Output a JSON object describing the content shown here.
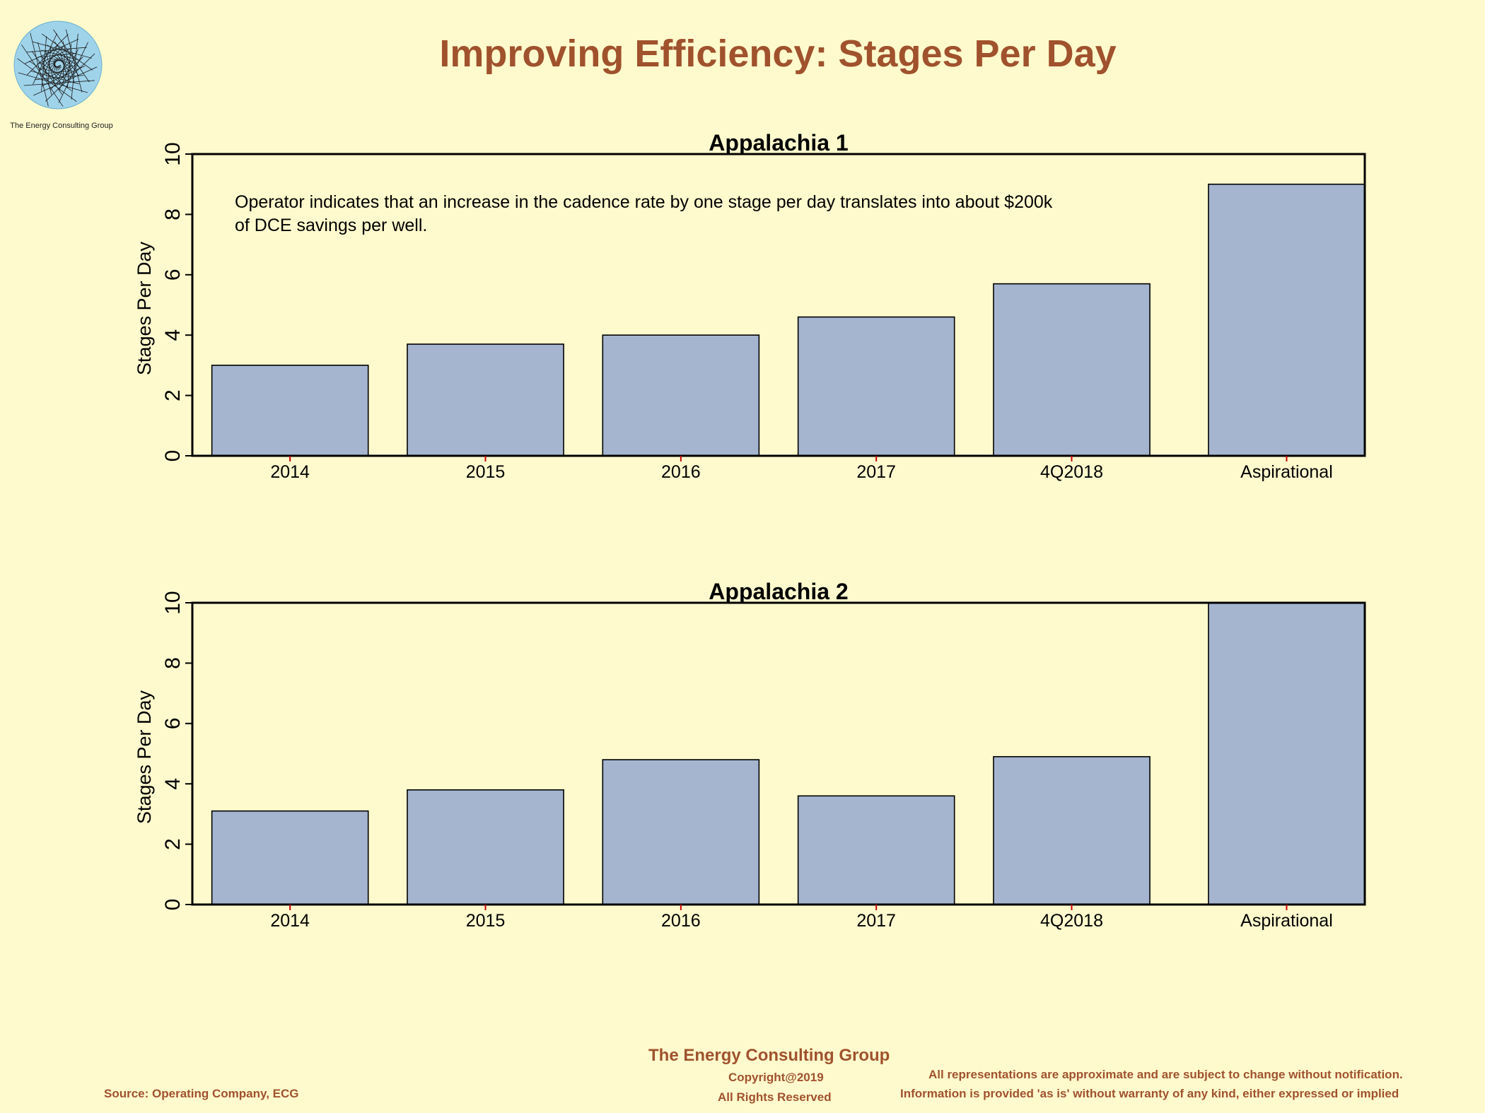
{
  "header": {
    "title": "Improving Efficiency:  Stages Per Day",
    "logo_text": "The Energy Consulting Group",
    "logo_icon": "spiral-logo-icon"
  },
  "colors": {
    "background": "#fffacd",
    "bar_fill": "#a5b5d0",
    "title": "#a0522d",
    "baseline": "#cc0000"
  },
  "chart_data": [
    {
      "type": "bar",
      "title": "Appalachia 1",
      "ylabel": "Stages Per Day",
      "xlabel": "",
      "ylim": [
        0,
        10
      ],
      "yticks": [
        0,
        2,
        4,
        6,
        8,
        10
      ],
      "categories": [
        "2014",
        "2015",
        "2016",
        "2017",
        "4Q2018",
        "Aspirational"
      ],
      "values": [
        3.0,
        3.7,
        4.0,
        4.6,
        5.7,
        9.0
      ],
      "annotation": [
        "Operator indicates that an increase in the cadence rate by one stage per day translates into about $200k",
        "of DCE savings per well."
      ],
      "grid": false
    },
    {
      "type": "bar",
      "title": "Appalachia 2",
      "ylabel": "Stages Per Day",
      "xlabel": "",
      "ylim": [
        0,
        10
      ],
      "yticks": [
        0,
        2,
        4,
        6,
        8,
        10
      ],
      "categories": [
        "2014",
        "2015",
        "2016",
        "2017",
        "4Q2018",
        "Aspirational"
      ],
      "values": [
        3.1,
        3.8,
        4.8,
        3.6,
        4.9,
        10.0
      ],
      "annotation": [],
      "grid": false
    }
  ],
  "footer": {
    "company": "The Energy Consulting Group",
    "copyright": "Copyright@2019",
    "rights": "All Rights Reserved",
    "source": "Source: Operating Company, ECG",
    "disclaimer_1": "All representations are approximate and are subject to change without notification.",
    "disclaimer_2": "Information is provided 'as is' without warranty of any kind, either expressed or implied"
  }
}
